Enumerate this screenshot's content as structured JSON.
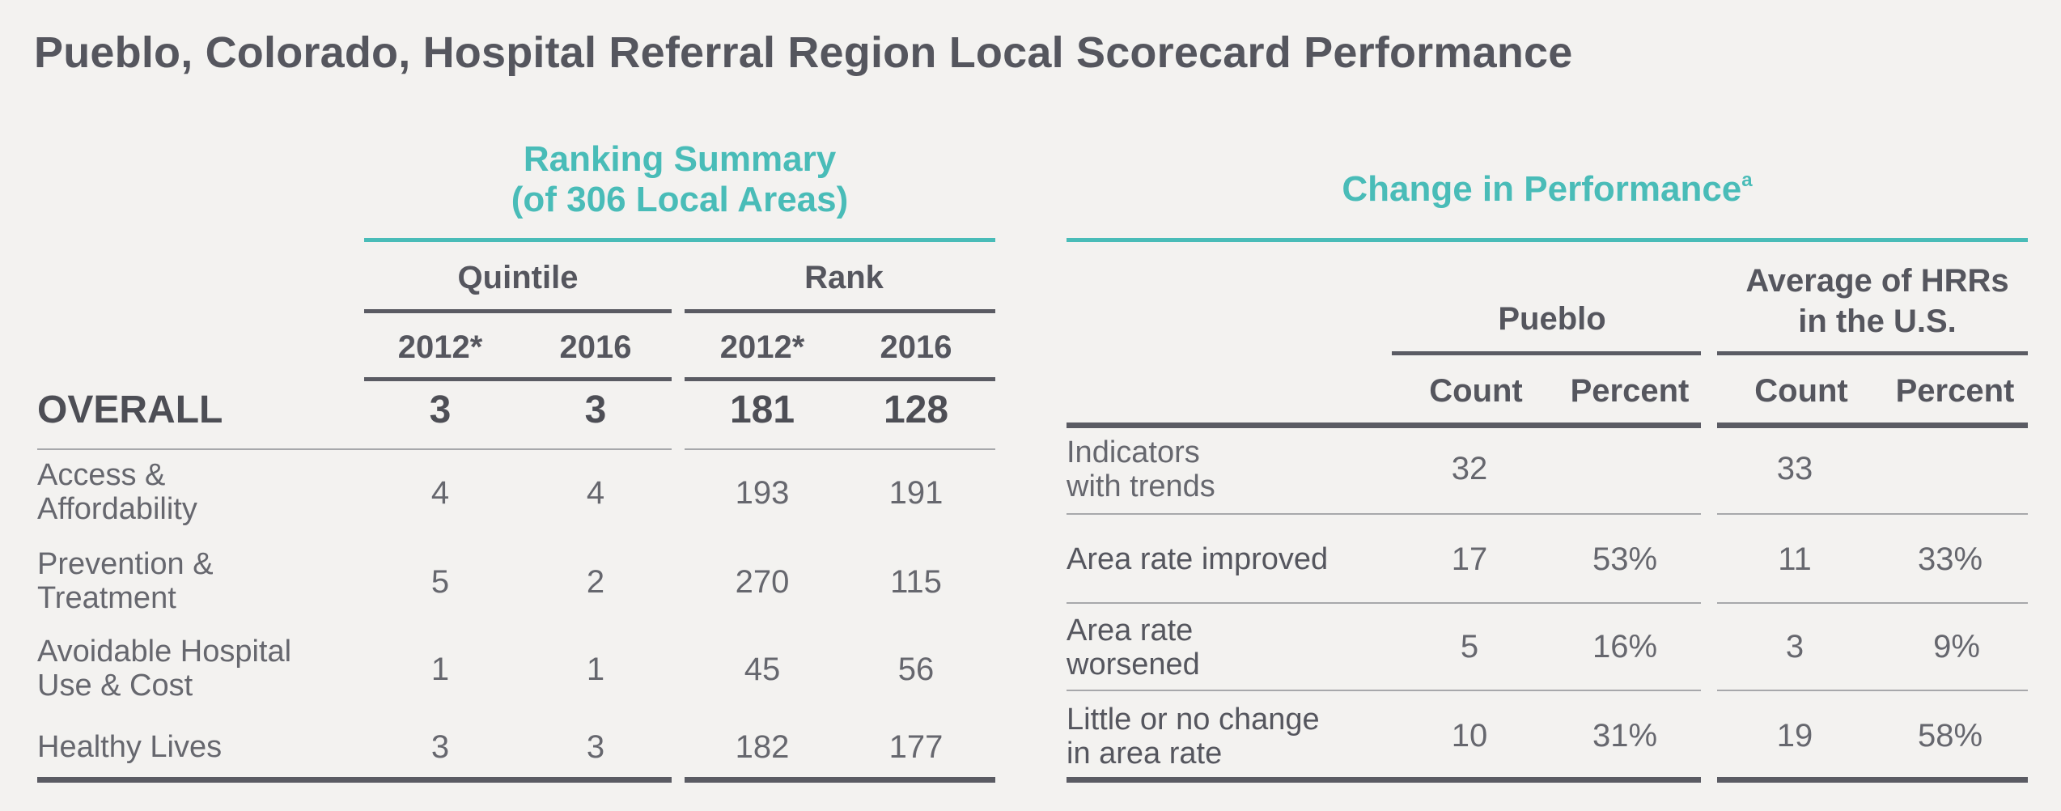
{
  "title": "Pueblo, Colorado, Hospital Referral Region Local Scorecard Performance",
  "ranking_summary": {
    "heading_line1": "Ranking Summary",
    "heading_line2": "(of 306 Local Areas)",
    "group_quintile": "Quintile",
    "group_rank": "Rank",
    "year_2012": "2012*",
    "year_2016": "2016",
    "rows": [
      {
        "label": "OVERALL",
        "q2012": "3",
        "q2016": "3",
        "r2012": "181",
        "r2016": "128"
      },
      {
        "label_line1": "Access &",
        "label_line2": "Affordability",
        "q2012": "4",
        "q2016": "4",
        "r2012": "193",
        "r2016": "191"
      },
      {
        "label_line1": "Prevention &",
        "label_line2": "Treatment",
        "q2012": "5",
        "q2016": "2",
        "r2012": "270",
        "r2016": "115"
      },
      {
        "label_line1": "Avoidable Hospital",
        "label_line2": "Use  & Cost",
        "q2012": "1",
        "q2016": "1",
        "r2012": "45",
        "r2016": "56"
      },
      {
        "label": "Healthy Lives",
        "q2012": "3",
        "q2016": "3",
        "r2012": "182",
        "r2016": "177"
      }
    ]
  },
  "change": {
    "heading": "Change in Performance",
    "heading_sup": "a",
    "group_pueblo": "Pueblo",
    "group_avg_line1": "Average of HRRs",
    "group_avg_line2": "in the U.S.",
    "col_count": "Count",
    "col_percent": "Percent",
    "rows": [
      {
        "label_line1": "Indicators",
        "label_line2": "with trends",
        "p_count": "32",
        "p_pct": "",
        "a_count": "33",
        "a_pct": ""
      },
      {
        "label": "Area rate improved",
        "p_count": "17",
        "p_pct": "53%",
        "a_count": "11",
        "a_pct": "33%"
      },
      {
        "label_line1": "Area rate",
        "label_line2": "worsened",
        "p_count": "5",
        "p_pct": "16%",
        "a_count": "3",
        "a_pct": "9%"
      },
      {
        "label_line1": "Little or no change",
        "label_line2": "in area rate",
        "p_count": "10",
        "p_pct": "31%",
        "a_count": "19",
        "a_pct": "58%"
      }
    ]
  },
  "colors": {
    "teal": "#49bcb8",
    "text": "#55565e",
    "background": "#f3f2f0"
  }
}
